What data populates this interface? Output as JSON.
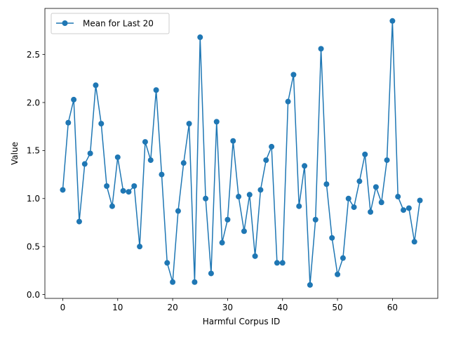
{
  "chart_data": {
    "type": "line",
    "xlabel": "Harmful Corpus ID",
    "ylabel": "Value",
    "xlim": [
      -3.25,
      68.25
    ],
    "ylim": [
      -0.04,
      2.98
    ],
    "xticks": [
      0,
      10,
      20,
      30,
      40,
      50,
      60
    ],
    "yticks": [
      0.0,
      0.5,
      1.0,
      1.5,
      2.0,
      2.5
    ],
    "legend_position": "upper-left",
    "grid": false,
    "color": "#1f77b4",
    "series": [
      {
        "name": "Mean for Last 20",
        "x": [
          0,
          1,
          2,
          3,
          4,
          5,
          6,
          7,
          8,
          9,
          10,
          11,
          12,
          13,
          14,
          15,
          16,
          17,
          18,
          19,
          20,
          21,
          22,
          23,
          24,
          25,
          26,
          27,
          28,
          29,
          30,
          31,
          32,
          33,
          34,
          35,
          36,
          37,
          38,
          39,
          40,
          41,
          42,
          43,
          44,
          45,
          46,
          47,
          48,
          49,
          50,
          51,
          52,
          53,
          54,
          55,
          56,
          57,
          58,
          59,
          60,
          61,
          62,
          63,
          64,
          65
        ],
        "values": [
          1.09,
          1.79,
          2.03,
          0.76,
          1.36,
          1.47,
          2.18,
          1.78,
          1.13,
          0.92,
          1.43,
          1.08,
          1.07,
          1.13,
          0.5,
          1.59,
          1.4,
          2.13,
          1.25,
          0.33,
          0.13,
          0.87,
          1.37,
          1.78,
          0.13,
          2.68,
          1.0,
          0.22,
          1.8,
          0.54,
          0.78,
          1.6,
          1.02,
          0.66,
          1.04,
          0.4,
          1.09,
          1.4,
          1.54,
          0.33,
          0.33,
          2.01,
          2.29,
          0.92,
          1.34,
          0.1,
          0.78,
          2.56,
          1.15,
          0.59,
          0.21,
          0.38,
          1.0,
          0.91,
          1.18,
          1.46,
          0.86,
          1.12,
          0.96,
          1.4,
          2.85,
          1.02,
          0.88,
          0.9,
          0.55,
          0.98
        ]
      }
    ]
  }
}
